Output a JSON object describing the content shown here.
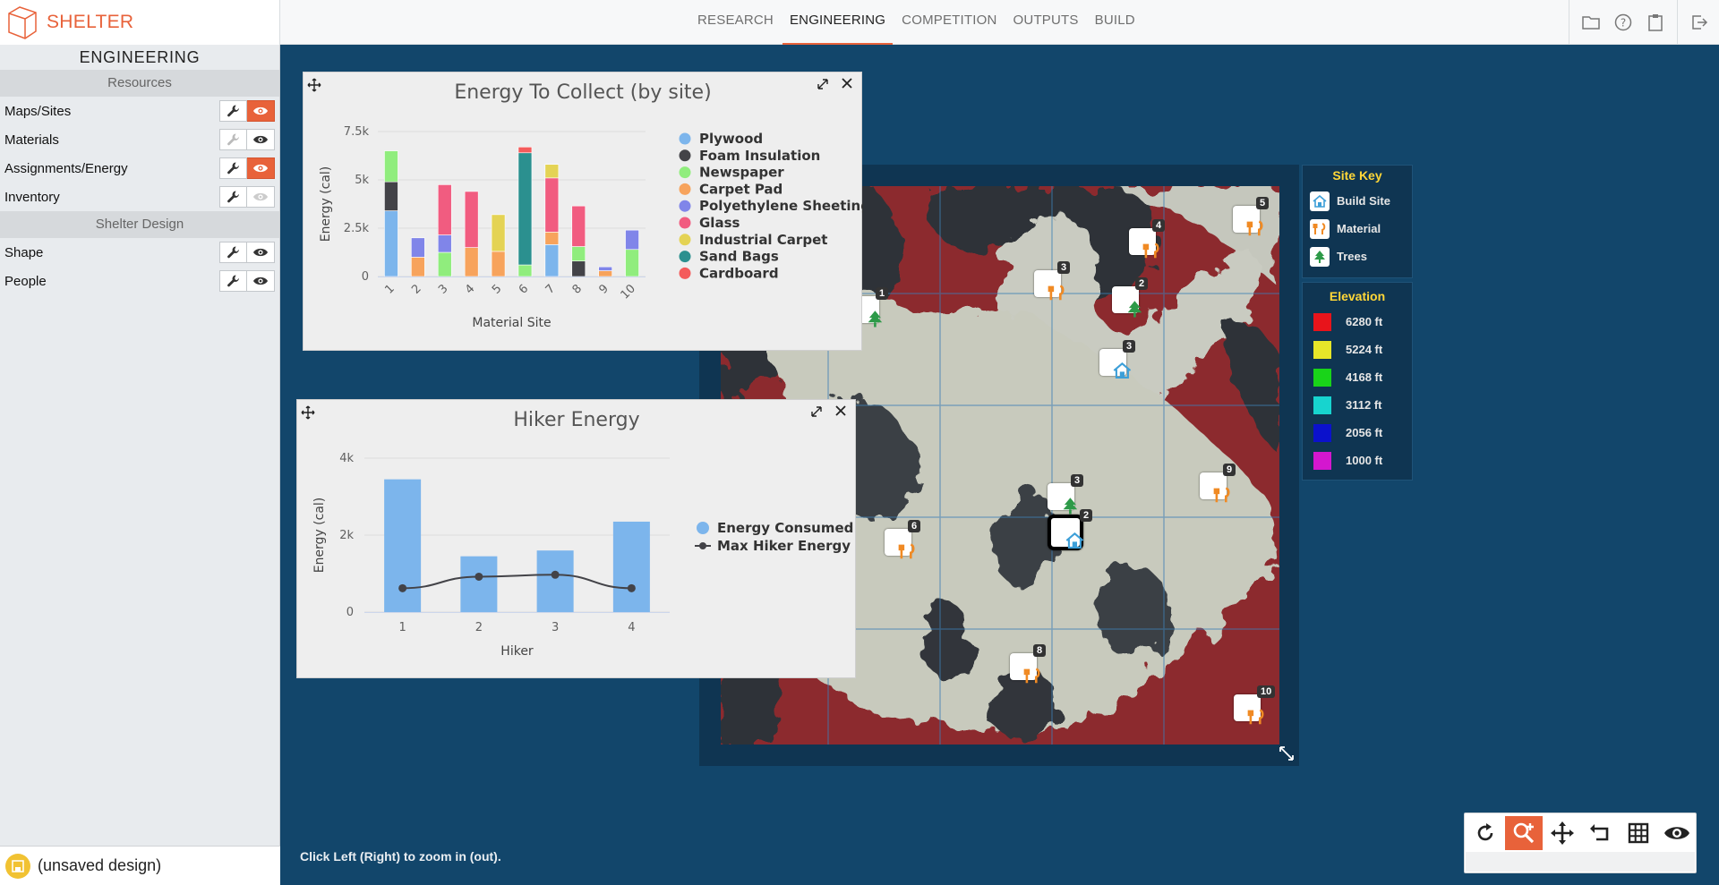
{
  "app": {
    "name": "SHELTER"
  },
  "nav": {
    "tabs": [
      {
        "label": "RESEARCH",
        "active": false
      },
      {
        "label": "ENGINEERING",
        "active": true
      },
      {
        "label": "COMPETITION",
        "active": false
      },
      {
        "label": "OUTPUTS",
        "active": false
      },
      {
        "label": "BUILD",
        "active": false
      }
    ],
    "icons": [
      "folder-icon",
      "help-icon",
      "clipboard-icon",
      "logout-icon"
    ]
  },
  "sidebar": {
    "title": "ENGINEERING",
    "sections": [
      {
        "header": "Resources",
        "rows": [
          {
            "label": "Maps/Sites",
            "edit_enabled": true,
            "view_on": true
          },
          {
            "label": "Materials",
            "edit_enabled": false,
            "view_on": false
          },
          {
            "label": "Assignments/Energy",
            "edit_enabled": true,
            "view_on": true
          },
          {
            "label": "Inventory",
            "edit_enabled": true,
            "view_on": false,
            "view_disabled": true
          }
        ]
      },
      {
        "header": "Shelter Design",
        "rows": [
          {
            "label": "Shape",
            "edit_enabled": true,
            "view_on": false
          },
          {
            "label": "People",
            "edit_enabled": true,
            "view_on": false
          }
        ]
      }
    ],
    "status": "(unsaved design)"
  },
  "colors": {
    "accent": "#e8623a",
    "map_background": "#12466b",
    "key_title": "#ffd738"
  },
  "hint": "Click Left (Right) to zoom in (out).",
  "site_key": {
    "title": "Site Key",
    "items": [
      {
        "label": "Build Site",
        "icon": "build-site-icon"
      },
      {
        "label": "Material",
        "icon": "material-icon"
      },
      {
        "label": "Trees",
        "icon": "tree-icon"
      }
    ]
  },
  "elevation_key": {
    "title": "Elevation",
    "items": [
      {
        "label": "6280 ft",
        "color": "#e8141b"
      },
      {
        "label": "5224 ft",
        "color": "#e6e629"
      },
      {
        "label": "4168 ft",
        "color": "#19d419"
      },
      {
        "label": "3112 ft",
        "color": "#17d4cf"
      },
      {
        "label": "2056 ft",
        "color": "#0b11cc"
      },
      {
        "label": "1000 ft",
        "color": "#d417cf"
      }
    ]
  },
  "map_markers": [
    {
      "type": "tree",
      "label": "1"
    },
    {
      "type": "material",
      "label": "3"
    },
    {
      "type": "material",
      "label": "4"
    },
    {
      "type": "material",
      "label": "5"
    },
    {
      "type": "tree",
      "label": "2"
    },
    {
      "type": "build",
      "label": "3"
    },
    {
      "type": "tree",
      "label": "3"
    },
    {
      "type": "material",
      "label": "9"
    },
    {
      "type": "build",
      "label": "2",
      "selected": true
    },
    {
      "type": "material",
      "label": "6"
    },
    {
      "type": "material",
      "label": "8"
    },
    {
      "type": "material",
      "label": "10"
    }
  ],
  "toolbar": {
    "tools": [
      "rotate-icon",
      "zoom-in-icon",
      "pan-icon",
      "undo-icon",
      "grid-icon",
      "eye-icon"
    ],
    "active": "zoom-in-icon"
  },
  "chart_data": [
    {
      "type": "bar",
      "stacked": true,
      "title": "Energy To Collect (by site)",
      "xlabel": "Material Site",
      "ylabel": "Energy (cal)",
      "ylim": [
        0,
        7500
      ],
      "yticks": [
        "0",
        "2.5k",
        "5k",
        "7.5k"
      ],
      "categories": [
        "1",
        "2",
        "3",
        "4",
        "5",
        "6",
        "7",
        "8",
        "9",
        "10"
      ],
      "legend_position": "right",
      "series": [
        {
          "name": "Plywood",
          "color": "#7cb5ec",
          "values": [
            3400,
            0,
            0,
            0,
            0,
            0,
            1650,
            0,
            0,
            0
          ]
        },
        {
          "name": "Foam Insulation",
          "color": "#434348",
          "values": [
            1500,
            0,
            0,
            0,
            0,
            0,
            0,
            800,
            0,
            0
          ]
        },
        {
          "name": "Newspaper",
          "color": "#90ed7d",
          "values": [
            1600,
            0,
            1250,
            0,
            0,
            600,
            0,
            750,
            0,
            1400
          ]
        },
        {
          "name": "Carpet Pad",
          "color": "#f7a35c",
          "values": [
            0,
            1000,
            0,
            1500,
            1300,
            0,
            650,
            0,
            300,
            0
          ]
        },
        {
          "name": "Polyethylene Sheeting",
          "color": "#8085e9",
          "values": [
            0,
            1000,
            900,
            0,
            0,
            0,
            0,
            0,
            200,
            1000
          ]
        },
        {
          "name": "Glass",
          "color": "#f15c80",
          "values": [
            0,
            0,
            2600,
            2900,
            0,
            0,
            2800,
            2100,
            0,
            0
          ]
        },
        {
          "name": "Industrial Carpet",
          "color": "#e4d354",
          "values": [
            0,
            0,
            0,
            0,
            1900,
            0,
            700,
            0,
            0,
            0
          ]
        },
        {
          "name": "Sand Bags",
          "color": "#2b908f",
          "values": [
            0,
            0,
            0,
            0,
            0,
            5800,
            0,
            0,
            0,
            0
          ]
        },
        {
          "name": "Cardboard",
          "color": "#f45b5b",
          "values": [
            0,
            0,
            0,
            0,
            0,
            300,
            0,
            0,
            0,
            0
          ]
        }
      ]
    },
    {
      "type": "bar",
      "title": "Hiker Energy",
      "xlabel": "Hiker",
      "ylabel": "Energy (cal)",
      "ylim": [
        0,
        4000
      ],
      "yticks": [
        "0",
        "2k",
        "4k"
      ],
      "categories": [
        "1",
        "2",
        "3",
        "4"
      ],
      "legend_position": "right",
      "series": [
        {
          "name": "Energy Consumed",
          "type": "bar",
          "color": "#7cb5ec",
          "values": [
            3450,
            1450,
            1600,
            2350
          ]
        },
        {
          "name": "Max Hiker Energy",
          "type": "line",
          "color": "#434348",
          "values": [
            620,
            920,
            970,
            620
          ]
        }
      ]
    }
  ]
}
